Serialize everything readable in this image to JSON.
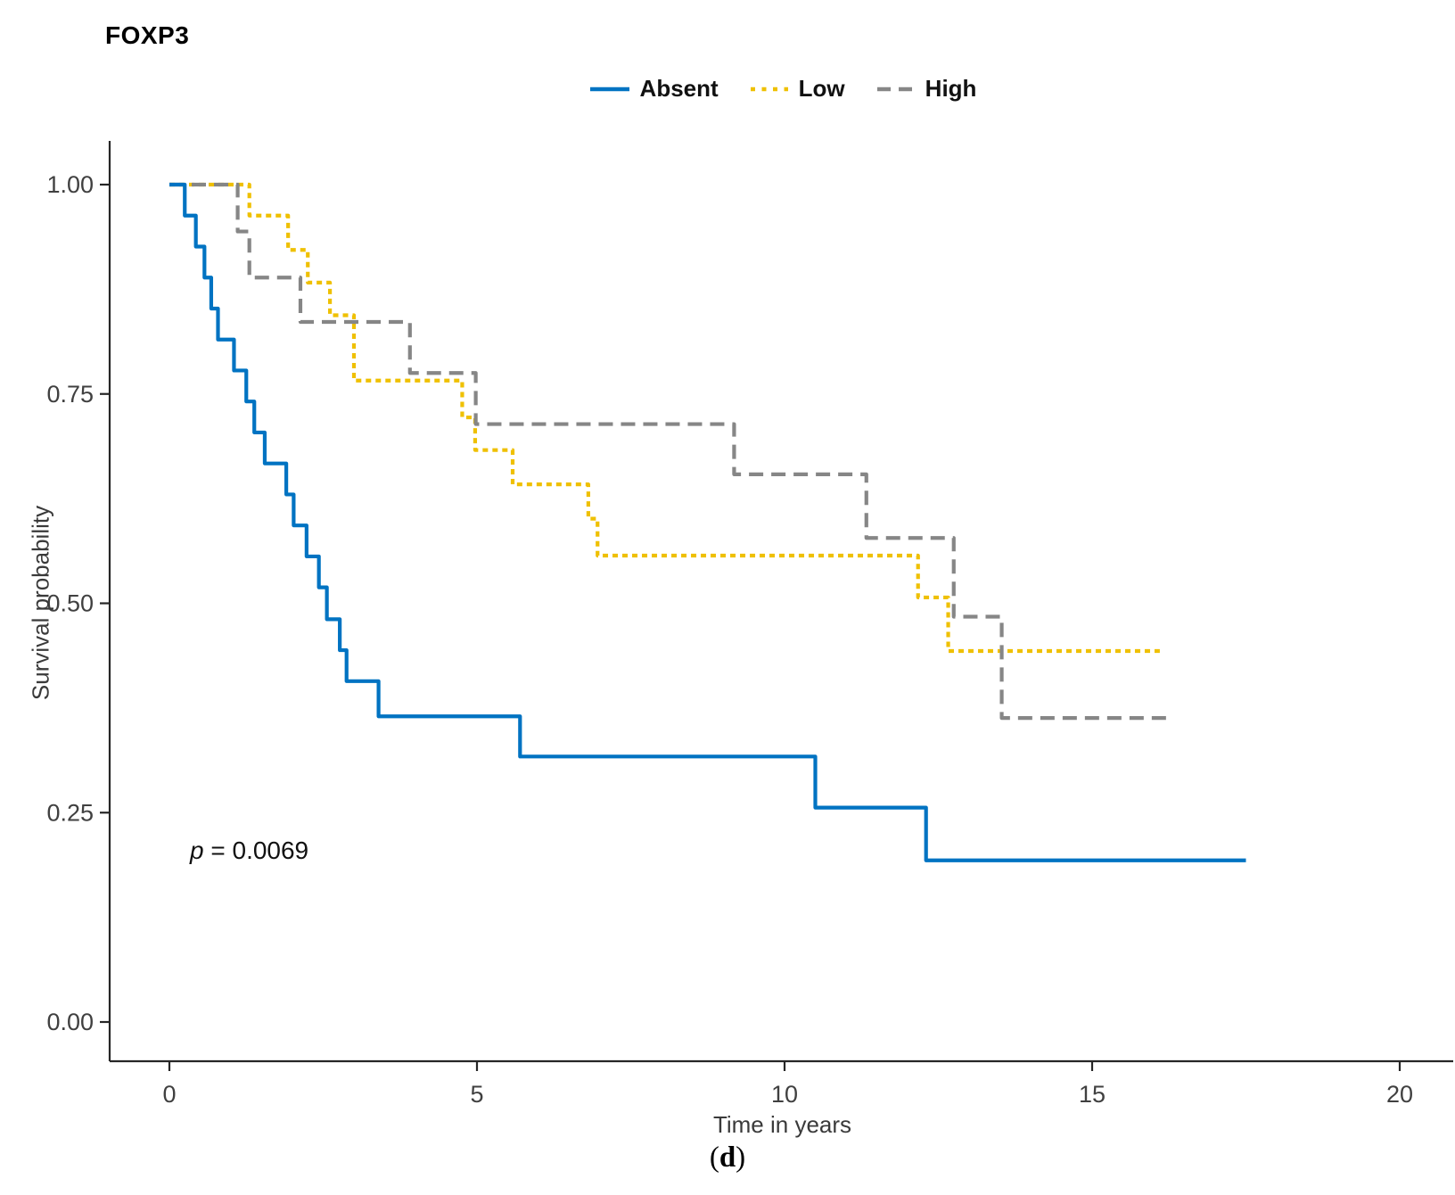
{
  "figure": {
    "title": "FOXP3",
    "caption": {
      "open": "(",
      "letter": "d",
      "close": ")"
    }
  },
  "chart_data": {
    "type": "line",
    "variant": "kaplan_meier_step_curve",
    "title": "FOXP3",
    "xlabel": "Time in years",
    "ylabel": "Survival probability",
    "xlim": [
      0,
      20
    ],
    "ylim": [
      0.0,
      1.0
    ],
    "grid": false,
    "legend_position": "top-center",
    "x_ticks": [
      "0",
      "5",
      "10",
      "15",
      "20"
    ],
    "y_ticks": [
      "0.00",
      "0.25",
      "0.50",
      "0.75",
      "1.00"
    ],
    "p_value": {
      "symbol": "p",
      "text": "= 0.0069"
    },
    "axis_color": "#262626",
    "tick_label_color": "#404040",
    "series": [
      {
        "name": "Absent",
        "color": "#0073C2",
        "line_style": "solid",
        "end_time": 17.5,
        "points": [
          [
            0,
            1.0
          ],
          [
            0.25,
            0.963
          ],
          [
            0.43,
            0.926
          ],
          [
            0.57,
            0.889
          ],
          [
            0.68,
            0.852
          ],
          [
            0.79,
            0.815
          ],
          [
            1.05,
            0.778
          ],
          [
            1.25,
            0.741
          ],
          [
            1.38,
            0.704
          ],
          [
            1.55,
            0.667
          ],
          [
            1.9,
            0.63
          ],
          [
            2.02,
            0.593
          ],
          [
            2.23,
            0.556
          ],
          [
            2.43,
            0.519
          ],
          [
            2.56,
            0.481
          ],
          [
            2.77,
            0.444
          ],
          [
            2.88,
            0.407
          ],
          [
            3.4,
            0.365
          ],
          [
            5.7,
            0.317
          ],
          [
            10.5,
            0.256
          ],
          [
            12.3,
            0.193
          ]
        ]
      },
      {
        "name": "Low",
        "color": "#EFC000",
        "line_style": "dotted",
        "end_time": 16.1,
        "points": [
          [
            0,
            1.0
          ],
          [
            1.3,
            0.963
          ],
          [
            1.93,
            0.922
          ],
          [
            2.25,
            0.883
          ],
          [
            2.61,
            0.844
          ],
          [
            3.0,
            0.766
          ],
          [
            4.76,
            0.722
          ],
          [
            4.97,
            0.683
          ],
          [
            5.58,
            0.642
          ],
          [
            6.81,
            0.601
          ],
          [
            6.96,
            0.557
          ],
          [
            12.17,
            0.507
          ],
          [
            12.66,
            0.443
          ]
        ]
      },
      {
        "name": "High",
        "color": "#868686",
        "line_style": "dashed",
        "end_time": 16.3,
        "points": [
          [
            0,
            1.0
          ],
          [
            1.11,
            0.944
          ],
          [
            1.3,
            0.889
          ],
          [
            2.13,
            0.836
          ],
          [
            3.91,
            0.775
          ],
          [
            4.98,
            0.714
          ],
          [
            9.18,
            0.654
          ],
          [
            11.33,
            0.578
          ],
          [
            12.75,
            0.484
          ],
          [
            13.53,
            0.363
          ]
        ]
      }
    ]
  }
}
